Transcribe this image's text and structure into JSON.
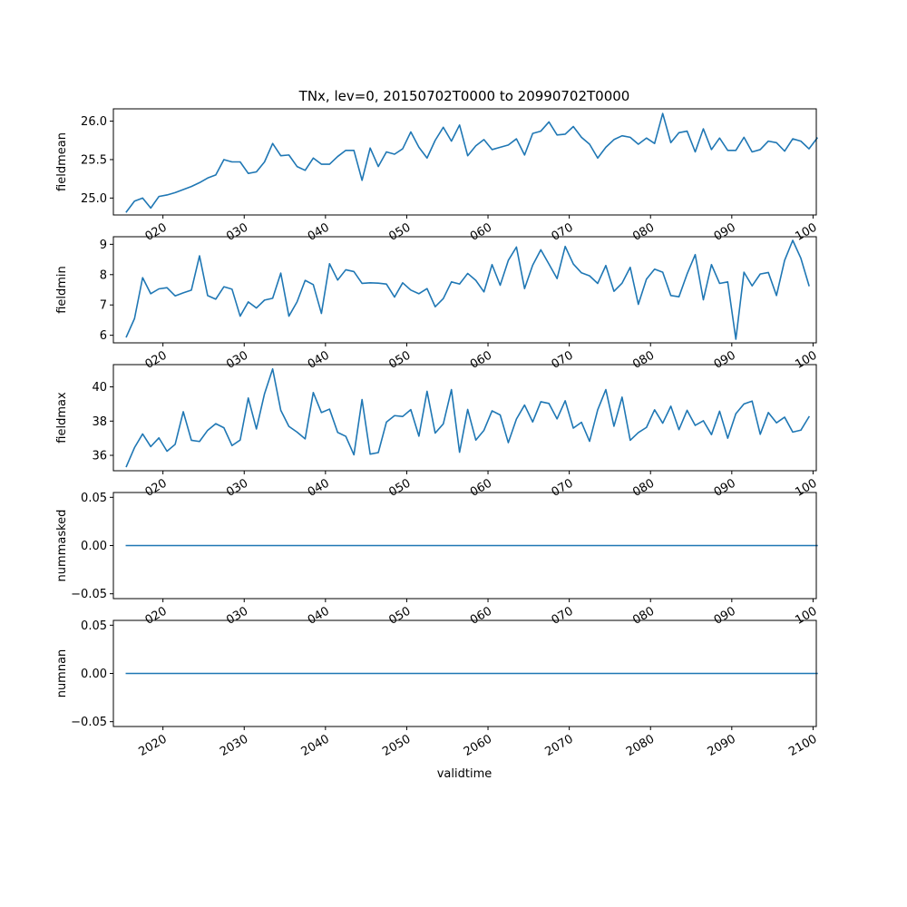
{
  "chart_data": {
    "type": "line",
    "title": "TNx, lev=0, 20150702T0000 to 20990702T0000",
    "xlabel": "validtime",
    "x_ticks": [
      "2020",
      "2030",
      "2040",
      "2050",
      "2060",
      "2070",
      "2080",
      "2090",
      "2100"
    ],
    "x_ticks_visible_fragments": [
      "020",
      "030",
      "040",
      "050",
      "060",
      "070",
      "080",
      "090",
      "100"
    ],
    "xlim": [
      2013.9,
      2100.4
    ],
    "x_start": 2015.5,
    "x_step": 1,
    "line_color": "#1f77b4",
    "panels": [
      {
        "name": "fieldmean",
        "ylabel": "fieldmean",
        "ylim": [
          24.78,
          26.16
        ],
        "yticks": [
          25.0,
          25.5,
          26.0
        ],
        "ytick_labels": [
          "25.0",
          "25.5",
          "26.0"
        ],
        "values": [
          24.82,
          24.96,
          25.0,
          24.87,
          25.02,
          25.04,
          25.07,
          25.11,
          25.15,
          25.2,
          25.26,
          25.3,
          25.5,
          25.47,
          25.47,
          25.32,
          25.34,
          25.47,
          25.71,
          25.55,
          25.56,
          25.41,
          25.36,
          25.52,
          25.44,
          25.44,
          25.54,
          25.62,
          25.62,
          25.23,
          25.65,
          25.41,
          25.6,
          25.57,
          25.64,
          25.86,
          25.66,
          25.52,
          25.75,
          25.92,
          25.74,
          25.95,
          25.55,
          25.68,
          25.76,
          25.63,
          25.66,
          25.69,
          25.77,
          25.56,
          25.84,
          25.87,
          25.99,
          25.82,
          25.83,
          25.93,
          25.79,
          25.7,
          25.52,
          25.66,
          25.76,
          25.81,
          25.79,
          25.7,
          25.78,
          25.71,
          26.1,
          25.72,
          25.85,
          25.87,
          25.6,
          25.9,
          25.63,
          25.78,
          25.62,
          25.62,
          25.79,
          25.6,
          25.63,
          25.74,
          25.72,
          25.61,
          25.77,
          25.74,
          25.64,
          25.78
        ]
      },
      {
        "name": "fieldmin",
        "ylabel": "fieldmin",
        "ylim": [
          5.75,
          9.25
        ],
        "yticks": [
          6,
          7,
          8,
          9
        ],
        "ytick_labels": [
          "6",
          "7",
          "8",
          "9"
        ],
        "values": [
          5.95,
          6.55,
          7.9,
          7.37,
          7.53,
          7.57,
          7.3,
          7.4,
          7.49,
          8.62,
          7.31,
          7.19,
          7.6,
          7.52,
          6.63,
          7.1,
          6.9,
          7.16,
          7.22,
          8.05,
          6.63,
          7.1,
          7.81,
          7.67,
          6.72,
          8.36,
          7.82,
          8.16,
          8.1,
          7.71,
          7.73,
          7.72,
          7.69,
          7.26,
          7.73,
          7.49,
          7.37,
          7.54,
          6.94,
          7.21,
          7.76,
          7.69,
          8.04,
          7.81,
          7.43,
          8.33,
          7.65,
          8.47,
          8.91,
          7.54,
          8.31,
          8.82,
          8.35,
          7.87,
          8.93,
          8.35,
          8.06,
          7.96,
          7.71,
          8.3,
          7.45,
          7.72,
          8.24,
          7.02,
          7.85,
          8.18,
          8.08,
          7.31,
          7.27,
          8.02,
          8.66,
          7.17,
          8.33,
          7.71,
          7.76,
          5.87,
          8.08,
          7.63,
          8.02,
          8.07,
          7.31,
          8.47,
          9.13,
          8.54,
          7.64
        ]
      },
      {
        "name": "fieldmax",
        "ylabel": "fieldmax",
        "ylim": [
          35.1,
          41.3
        ],
        "yticks": [
          36,
          38,
          40
        ],
        "ytick_labels": [
          "36",
          "38",
          "40"
        ],
        "values": [
          35.35,
          36.45,
          37.25,
          36.51,
          37.02,
          36.24,
          36.64,
          38.55,
          36.88,
          36.81,
          37.46,
          37.85,
          37.61,
          36.57,
          36.89,
          39.35,
          37.54,
          39.6,
          41.05,
          38.63,
          37.69,
          37.36,
          36.96,
          39.67,
          38.5,
          38.7,
          37.34,
          37.11,
          36.03,
          39.26,
          36.07,
          36.16,
          37.94,
          38.32,
          38.27,
          38.67,
          37.12,
          39.74,
          37.3,
          37.84,
          39.84,
          36.18,
          38.68,
          36.89,
          37.46,
          38.6,
          38.36,
          36.74,
          38.12,
          38.94,
          37.95,
          39.13,
          39.03,
          38.13,
          39.19,
          37.59,
          37.93,
          36.82,
          38.66,
          39.84,
          37.7,
          39.4,
          36.88,
          37.33,
          37.63,
          38.66,
          37.88,
          38.87,
          37.5,
          38.63,
          37.75,
          38.02,
          37.21,
          38.58,
          37.0,
          38.43,
          39.0,
          39.17,
          37.23,
          38.5,
          37.9,
          38.23,
          37.36,
          37.47,
          38.25
        ]
      },
      {
        "name": "nummasked",
        "ylabel": "nummasked",
        "ylim": [
          -0.055,
          0.055
        ],
        "yticks": [
          -0.05,
          0.0,
          0.05
        ],
        "ytick_labels": [
          "−0.05",
          "0.00",
          "0.05"
        ],
        "values": [
          0,
          0
        ]
      },
      {
        "name": "numnan",
        "ylabel": "numnan",
        "ylim": [
          -0.055,
          0.055
        ],
        "yticks": [
          -0.05,
          0.0,
          0.05
        ],
        "ytick_labels": [
          "−0.05",
          "0.00",
          "0.05"
        ],
        "values": [
          0,
          0
        ]
      }
    ]
  }
}
